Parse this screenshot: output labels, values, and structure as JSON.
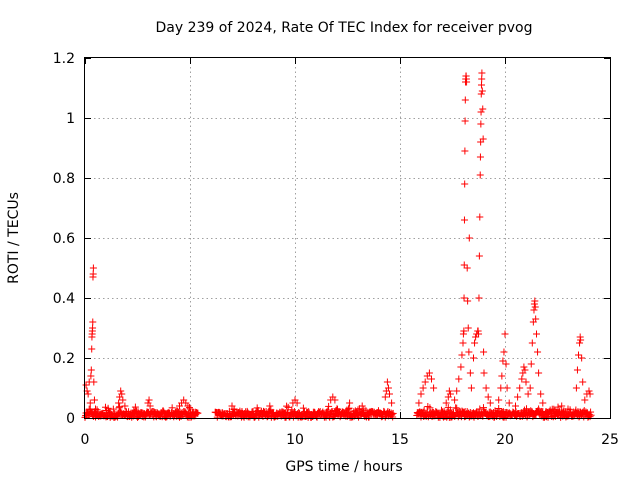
{
  "chart_data": {
    "type": "scatter",
    "title": "Day 239 of 2024, Rate Of TEC Index for receiver pvog",
    "xlabel": "GPS time / hours",
    "ylabel": "ROTI / TECUs",
    "xlim": [
      0,
      25
    ],
    "ylim": [
      0,
      1.2
    ],
    "xticks": [
      0,
      5,
      10,
      15,
      20,
      25
    ],
    "xtick_labels": [
      "0",
      "5",
      "10",
      "15",
      "20",
      "25"
    ],
    "yticks": [
      0,
      0.2,
      0.4,
      0.6,
      0.8,
      1.0,
      1.2
    ],
    "ytick_labels": [
      "0",
      "0.2",
      "0.4",
      "0.6",
      "0.8",
      "1",
      "1.2"
    ],
    "grid": true,
    "marker": "+",
    "color": "#ff0000",
    "series": [
      {
        "name": "ROTI",
        "points": [
          [
            0.05,
            0.11
          ],
          [
            0.1,
            0.09
          ],
          [
            0.15,
            0.08
          ],
          [
            0.2,
            0.12
          ],
          [
            0.25,
            0.05
          ],
          [
            0.28,
            0.14
          ],
          [
            0.3,
            0.16
          ],
          [
            0.32,
            0.23
          ],
          [
            0.33,
            0.27
          ],
          [
            0.34,
            0.28
          ],
          [
            0.35,
            0.29
          ],
          [
            0.36,
            0.3
          ],
          [
            0.37,
            0.32
          ],
          [
            0.38,
            0.47
          ],
          [
            0.39,
            0.48
          ],
          [
            0.4,
            0.5
          ],
          [
            0.42,
            0.12
          ],
          [
            0.45,
            0.06
          ],
          [
            0.5,
            0.03
          ],
          [
            1.6,
            0.05
          ],
          [
            1.65,
            0.07
          ],
          [
            1.7,
            0.09
          ],
          [
            1.75,
            0.08
          ],
          [
            1.8,
            0.06
          ],
          [
            1.9,
            0.04
          ],
          [
            3.0,
            0.05
          ],
          [
            3.05,
            0.06
          ],
          [
            3.1,
            0.04
          ],
          [
            4.5,
            0.04
          ],
          [
            4.6,
            0.05
          ],
          [
            4.7,
            0.06
          ],
          [
            4.8,
            0.05
          ],
          [
            4.9,
            0.04
          ],
          [
            5.0,
            0.03
          ],
          [
            7.0,
            0.04
          ],
          [
            7.1,
            0.03
          ],
          [
            8.8,
            0.04
          ],
          [
            9.9,
            0.05
          ],
          [
            10.0,
            0.06
          ],
          [
            10.1,
            0.05
          ],
          [
            11.7,
            0.06
          ],
          [
            11.8,
            0.07
          ],
          [
            11.9,
            0.06
          ],
          [
            12.6,
            0.05
          ],
          [
            13.2,
            0.04
          ],
          [
            14.3,
            0.07
          ],
          [
            14.35,
            0.09
          ],
          [
            14.4,
            0.12
          ],
          [
            14.45,
            0.1
          ],
          [
            14.5,
            0.08
          ],
          [
            14.6,
            0.05
          ],
          [
            15.9,
            0.05
          ],
          [
            16.0,
            0.08
          ],
          [
            16.1,
            0.1
          ],
          [
            16.2,
            0.12
          ],
          [
            16.3,
            0.14
          ],
          [
            16.4,
            0.15
          ],
          [
            16.5,
            0.13
          ],
          [
            16.6,
            0.1
          ],
          [
            17.2,
            0.05
          ],
          [
            17.3,
            0.07
          ],
          [
            17.35,
            0.09
          ],
          [
            17.4,
            0.08
          ],
          [
            17.6,
            0.06
          ],
          [
            17.7,
            0.09
          ],
          [
            17.8,
            0.13
          ],
          [
            17.9,
            0.17
          ],
          [
            17.95,
            0.21
          ],
          [
            18.0,
            0.25
          ],
          [
            18.02,
            0.28
          ],
          [
            18.04,
            0.29
          ],
          [
            18.05,
            0.4
          ],
          [
            18.06,
            0.51
          ],
          [
            18.07,
            0.66
          ],
          [
            18.08,
            0.78
          ],
          [
            18.09,
            0.89
          ],
          [
            18.1,
            0.99
          ],
          [
            18.11,
            1.06
          ],
          [
            18.12,
            1.12
          ],
          [
            18.13,
            1.13
          ],
          [
            18.14,
            1.14
          ],
          [
            18.15,
            1.14
          ],
          [
            18.16,
            1.13
          ],
          [
            18.17,
            1.12
          ],
          [
            18.2,
            0.5
          ],
          [
            18.22,
            0.39
          ],
          [
            18.25,
            0.3
          ],
          [
            18.28,
            0.22
          ],
          [
            18.3,
            0.6
          ],
          [
            18.35,
            0.15
          ],
          [
            18.4,
            0.1
          ],
          [
            18.5,
            0.2
          ],
          [
            18.55,
            0.25
          ],
          [
            18.6,
            0.27
          ],
          [
            18.65,
            0.28
          ],
          [
            18.7,
            0.29
          ],
          [
            18.72,
            0.29
          ],
          [
            18.74,
            0.28
          ],
          [
            18.76,
            0.4
          ],
          [
            18.78,
            0.54
          ],
          [
            18.8,
            0.67
          ],
          [
            18.82,
            0.81
          ],
          [
            18.83,
            0.87
          ],
          [
            18.84,
            0.92
          ],
          [
            18.85,
            0.98
          ],
          [
            18.86,
            1.02
          ],
          [
            18.87,
            1.08
          ],
          [
            18.88,
            1.11
          ],
          [
            18.89,
            1.13
          ],
          [
            18.9,
            1.15
          ],
          [
            18.92,
            1.09
          ],
          [
            18.94,
            1.03
          ],
          [
            18.96,
            0.93
          ],
          [
            18.98,
            0.22
          ],
          [
            19.0,
            0.15
          ],
          [
            19.1,
            0.1
          ],
          [
            19.2,
            0.07
          ],
          [
            19.3,
            0.05
          ],
          [
            19.7,
            0.06
          ],
          [
            19.8,
            0.1
          ],
          [
            19.85,
            0.14
          ],
          [
            19.9,
            0.19
          ],
          [
            19.95,
            0.22
          ],
          [
            20.0,
            0.28
          ],
          [
            20.05,
            0.18
          ],
          [
            20.1,
            0.1
          ],
          [
            20.2,
            0.05
          ],
          [
            20.5,
            0.04
          ],
          [
            20.6,
            0.07
          ],
          [
            20.7,
            0.1
          ],
          [
            20.8,
            0.13
          ],
          [
            20.85,
            0.15
          ],
          [
            20.9,
            0.17
          ],
          [
            20.95,
            0.16
          ],
          [
            21.0,
            0.12
          ],
          [
            21.1,
            0.08
          ],
          [
            21.2,
            0.1
          ],
          [
            21.25,
            0.18
          ],
          [
            21.3,
            0.25
          ],
          [
            21.35,
            0.32
          ],
          [
            21.38,
            0.36
          ],
          [
            21.4,
            0.38
          ],
          [
            21.42,
            0.39
          ],
          [
            21.44,
            0.37
          ],
          [
            21.46,
            0.33
          ],
          [
            21.5,
            0.28
          ],
          [
            21.55,
            0.22
          ],
          [
            21.6,
            0.15
          ],
          [
            21.7,
            0.08
          ],
          [
            21.8,
            0.05
          ],
          [
            22.7,
            0.04
          ],
          [
            23.0,
            0.03
          ],
          [
            23.4,
            0.1
          ],
          [
            23.45,
            0.16
          ],
          [
            23.5,
            0.21
          ],
          [
            23.55,
            0.25
          ],
          [
            23.58,
            0.27
          ],
          [
            23.6,
            0.26
          ],
          [
            23.65,
            0.2
          ],
          [
            23.7,
            0.12
          ],
          [
            23.8,
            0.06
          ],
          [
            23.9,
            0.08
          ],
          [
            24.0,
            0.09
          ],
          [
            24.05,
            0.08
          ]
        ]
      }
    ],
    "coverage_segments": [
      [
        0.0,
        5.4
      ],
      [
        6.2,
        14.7
      ],
      [
        15.8,
        24.1
      ]
    ]
  }
}
